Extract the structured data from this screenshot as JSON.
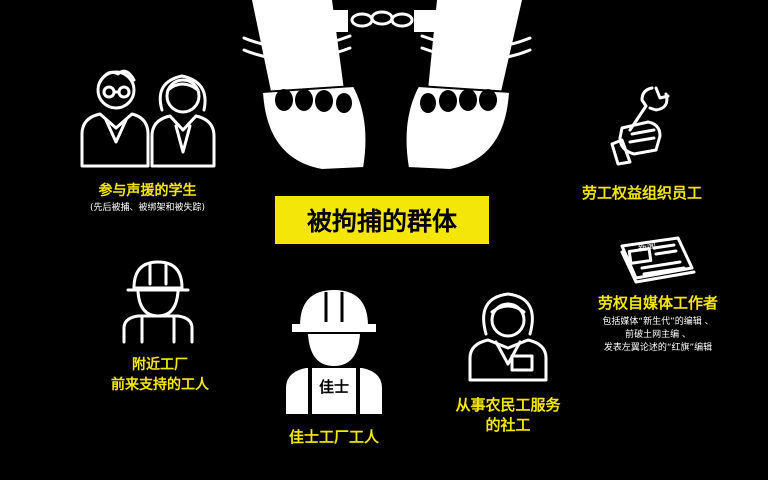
{
  "center": {
    "label": "被拘捕的群体"
  },
  "groups": {
    "students": {
      "title": "参与声援的学生",
      "note": "(先后被捕、被绑架和被失踪)"
    },
    "nearby_workers": {
      "line1": "附近工厂",
      "line2": "前来支持的工人"
    },
    "jasic_workers": {
      "title": "佳士工厂工人",
      "helmet_text": "佳士"
    },
    "social_workers": {
      "line1": "从事农民工服务",
      "line2": "的社工"
    },
    "ngo_staff": {
      "title": "劳工权益组织员工"
    },
    "media_workers": {
      "title": "劳权自媒体工作者",
      "note1": "包括媒体“新生代”的编辑 、",
      "note2": "前破土网主编 、",
      "note3": "发表左翼论述的“红旗”编辑",
      "newspaper_text": "新闻"
    }
  },
  "icons": [
    "handcuffed-hands-icon",
    "students-icon",
    "hardhat-worker-icon",
    "jasic-worker-icon",
    "social-worker-icon",
    "wrench-fist-icon",
    "newspaper-icon"
  ],
  "colors": {
    "background": "#000000",
    "accent": "#f5e60a",
    "line": "#ffffff"
  }
}
